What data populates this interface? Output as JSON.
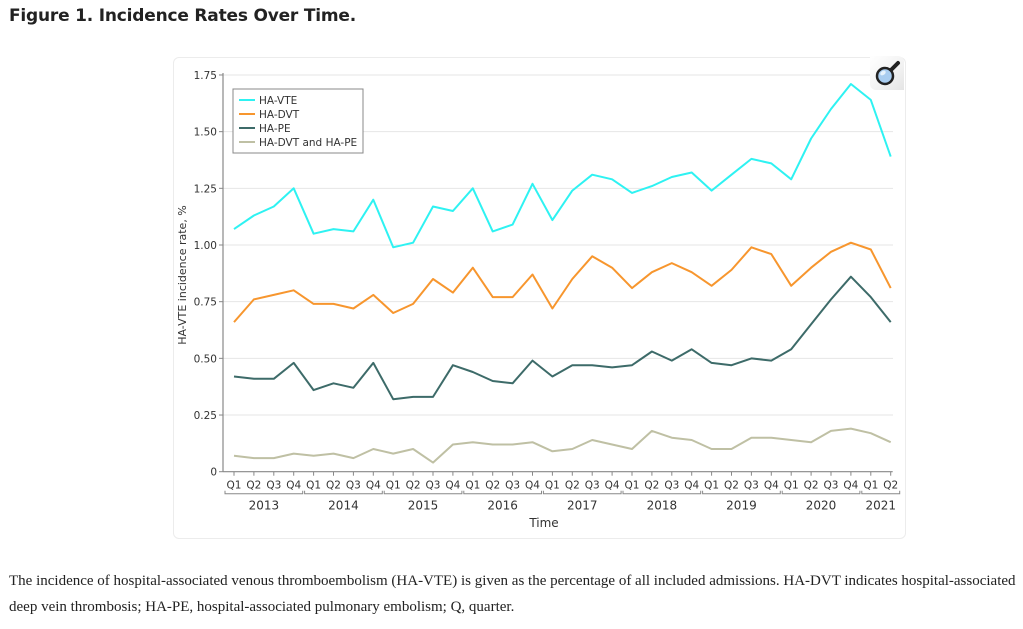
{
  "figure": {
    "title": "Figure 1. Incidence Rates Over Time.",
    "caption": "The incidence of hospital-associated venous thromboembolism (HA-VTE) is given as the percentage of all included admissions. HA-DVT indicates hospital-associated deep vein thrombosis; HA-PE, hospital-associated pulmonary embolism; Q, quarter.",
    "zoom_icon": "magnifier-icon"
  },
  "chart_data": {
    "type": "line",
    "title": "",
    "xlabel": "Time",
    "ylabel": "HA-VTE incidence rate, %",
    "ylim": [
      0,
      1.75
    ],
    "yticks": [
      0,
      0.25,
      0.5,
      0.75,
      1.0,
      1.25,
      1.5,
      1.75
    ],
    "ytick_labels": [
      "0",
      "0.25",
      "0.50",
      "0.75",
      "1.00",
      "1.25",
      "1.50",
      "1.75"
    ],
    "grid": "horizontal",
    "legend_position": "top-left",
    "x": [
      "Q1",
      "Q2",
      "Q3",
      "Q4",
      "Q1",
      "Q2",
      "Q3",
      "Q4",
      "Q1",
      "Q2",
      "Q3",
      "Q4",
      "Q1",
      "Q2",
      "Q3",
      "Q4",
      "Q1",
      "Q2",
      "Q3",
      "Q4",
      "Q1",
      "Q2",
      "Q3",
      "Q4",
      "Q1",
      "Q2",
      "Q3",
      "Q4",
      "Q1",
      "Q2",
      "Q3",
      "Q4",
      "Q1",
      "Q2"
    ],
    "year_groups": [
      {
        "label": "2013",
        "count": 4
      },
      {
        "label": "2014",
        "count": 4
      },
      {
        "label": "2015",
        "count": 4
      },
      {
        "label": "2016",
        "count": 4
      },
      {
        "label": "2017",
        "count": 4
      },
      {
        "label": "2018",
        "count": 4
      },
      {
        "label": "2019",
        "count": 4
      },
      {
        "label": "2020",
        "count": 4
      },
      {
        "label": "2021",
        "count": 2
      }
    ],
    "series": [
      {
        "name": "HA-VTE",
        "color": "#2ef2f2",
        "values": [
          1.07,
          1.13,
          1.17,
          1.25,
          1.05,
          1.07,
          1.06,
          1.2,
          0.99,
          1.01,
          1.17,
          1.15,
          1.25,
          1.06,
          1.09,
          1.27,
          1.11,
          1.24,
          1.31,
          1.29,
          1.23,
          1.26,
          1.3,
          1.32,
          1.24,
          1.31,
          1.38,
          1.36,
          1.29,
          1.47,
          1.6,
          1.71,
          1.64,
          1.39
        ]
      },
      {
        "name": "HA-DVT",
        "color": "#f7962e",
        "values": [
          0.66,
          0.76,
          0.78,
          0.8,
          0.74,
          0.74,
          0.72,
          0.78,
          0.7,
          0.74,
          0.85,
          0.79,
          0.9,
          0.77,
          0.77,
          0.87,
          0.72,
          0.85,
          0.95,
          0.9,
          0.81,
          0.88,
          0.92,
          0.88,
          0.82,
          0.89,
          0.99,
          0.96,
          0.82,
          0.9,
          0.97,
          1.01,
          0.98,
          0.81
        ]
      },
      {
        "name": "HA-PE",
        "color": "#3d6b69",
        "values": [
          0.42,
          0.41,
          0.41,
          0.48,
          0.36,
          0.39,
          0.37,
          0.48,
          0.32,
          0.33,
          0.33,
          0.47,
          0.44,
          0.4,
          0.39,
          0.49,
          0.42,
          0.47,
          0.47,
          0.46,
          0.47,
          0.53,
          0.49,
          0.54,
          0.48,
          0.47,
          0.5,
          0.49,
          0.54,
          0.65,
          0.76,
          0.86,
          0.77,
          0.66
        ]
      },
      {
        "name": "HA-DVT and HA-PE",
        "color": "#bfc0a4",
        "values": [
          0.07,
          0.06,
          0.06,
          0.08,
          0.07,
          0.08,
          0.06,
          0.1,
          0.08,
          0.1,
          0.04,
          0.12,
          0.13,
          0.12,
          0.12,
          0.13,
          0.09,
          0.1,
          0.14,
          0.12,
          0.1,
          0.18,
          0.15,
          0.14,
          0.1,
          0.1,
          0.15,
          0.15,
          0.14,
          0.13,
          0.18,
          0.19,
          0.17,
          0.13
        ]
      }
    ]
  }
}
